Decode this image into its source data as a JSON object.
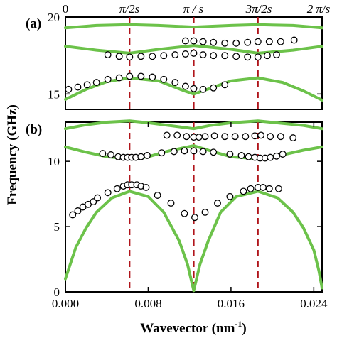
{
  "figure": {
    "ylabel": "Frequency (GHz)",
    "xlabel_main": "Wavevector (nm",
    "xlabel_sup": "-1",
    "xlabel_close": ")",
    "top_ticks": [
      "0",
      "π/2s",
      "π / s",
      "3π/2s",
      "2 π/s"
    ],
    "colors": {
      "band": "#6cc24a",
      "marker": "#b0151b",
      "circle": "#000000",
      "axis": "#000000"
    }
  },
  "chart_data": [
    {
      "type": "line+scatter",
      "panel_label": "(a)",
      "xlim": [
        0,
        0.0248
      ],
      "ylim": [
        14,
        20
      ],
      "yticks": [
        15,
        20
      ],
      "ytick_labels": [
        "15",
        "20"
      ],
      "markers_x": [
        0.0062,
        0.0124,
        0.0186
      ],
      "series": [
        {
          "kind": "line",
          "x": [
            0,
            0.003,
            0.0062,
            0.009,
            0.0124,
            0.016,
            0.0186,
            0.022,
            0.0248
          ],
          "y": [
            19.3,
            19.45,
            19.5,
            19.45,
            19.35,
            19.45,
            19.5,
            19.45,
            19.3
          ]
        },
        {
          "kind": "line",
          "x": [
            0,
            0.003,
            0.0062,
            0.009,
            0.0124,
            0.016,
            0.0186,
            0.022,
            0.0248
          ],
          "y": [
            18.1,
            17.85,
            17.65,
            17.9,
            18.15,
            17.9,
            17.65,
            17.85,
            18.1
          ]
        },
        {
          "kind": "line",
          "x": [
            0,
            0.002,
            0.004,
            0.0062,
            0.009,
            0.0115,
            0.0124,
            0.0135,
            0.016,
            0.0186,
            0.021,
            0.023,
            0.0248
          ],
          "y": [
            14.65,
            15.3,
            15.8,
            16.05,
            15.85,
            15.2,
            15.0,
            15.25,
            15.85,
            16.05,
            15.75,
            15.2,
            14.6
          ]
        },
        {
          "kind": "scatter",
          "x": [
            0.0003,
            0.0012,
            0.0021,
            0.003,
            0.0041,
            0.0052,
            0.0062,
            0.0073,
            0.0084,
            0.0095,
            0.0106,
            0.0116,
            0.0124,
            0.0133,
            0.0143,
            0.0154
          ],
          "y": [
            15.3,
            15.45,
            15.6,
            15.75,
            15.95,
            16.05,
            16.15,
            16.15,
            16.1,
            15.95,
            15.75,
            15.5,
            15.35,
            15.3,
            15.4,
            15.6
          ]
        },
        {
          "kind": "scatter",
          "x": [
            0.0041,
            0.0052,
            0.0062,
            0.0073,
            0.0084,
            0.0095,
            0.0106,
            0.0116,
            0.0124,
            0.0133,
            0.0143,
            0.0154,
            0.0165,
            0.0176,
            0.0186,
            0.0195,
            0.0204
          ],
          "y": [
            17.55,
            17.45,
            17.4,
            17.45,
            17.45,
            17.5,
            17.55,
            17.6,
            17.65,
            17.55,
            17.5,
            17.5,
            17.45,
            17.4,
            17.4,
            17.5,
            17.55
          ]
        },
        {
          "kind": "scatter",
          "x": [
            0.0116,
            0.0124,
            0.0133,
            0.0143,
            0.0154,
            0.0165,
            0.0176,
            0.0186,
            0.0197,
            0.0208,
            0.0221
          ],
          "y": [
            18.45,
            18.45,
            18.4,
            18.35,
            18.3,
            18.3,
            18.35,
            18.4,
            18.4,
            18.4,
            18.5
          ]
        }
      ]
    },
    {
      "type": "line+scatter",
      "panel_label": "(b)",
      "xlim": [
        0,
        0.0248
      ],
      "ylim": [
        0,
        13
      ],
      "yticks": [
        0,
        5,
        10
      ],
      "ytick_labels": [
        "0",
        "5",
        "10"
      ],
      "xticks": [
        0,
        0.008,
        0.016,
        0.024
      ],
      "xtick_labels": [
        "0.000",
        "0.008",
        "0.016",
        "0.024"
      ],
      "markers_x": [
        0.0062,
        0.0124,
        0.0186
      ],
      "series": [
        {
          "kind": "line",
          "x": [
            0,
            0.002,
            0.004,
            0.0062,
            0.008,
            0.01,
            0.0124,
            0.014,
            0.016,
            0.0186,
            0.021,
            0.023,
            0.0248
          ],
          "y": [
            12.5,
            12.8,
            13.0,
            13.1,
            12.95,
            12.75,
            12.5,
            12.75,
            12.95,
            13.1,
            12.9,
            12.75,
            12.5
          ]
        },
        {
          "kind": "line",
          "x": [
            0,
            0.002,
            0.004,
            0.0062,
            0.008,
            0.01,
            0.0124,
            0.014,
            0.016,
            0.0186,
            0.021,
            0.023,
            0.0248
          ],
          "y": [
            11.1,
            10.7,
            10.35,
            10.2,
            10.35,
            10.8,
            11.2,
            10.8,
            10.35,
            10.2,
            10.5,
            10.85,
            11.1
          ]
        },
        {
          "kind": "line",
          "x": [
            0,
            0.0005,
            0.001,
            0.002,
            0.003,
            0.0045,
            0.0062,
            0.008,
            0.0095,
            0.011,
            0.0118,
            0.0124
          ],
          "y": [
            1.0,
            2.2,
            3.4,
            4.9,
            6.1,
            7.2,
            7.7,
            7.3,
            6.1,
            3.9,
            2.1,
            0.1
          ]
        },
        {
          "kind": "line",
          "x": [
            0.0124,
            0.013,
            0.0138,
            0.015,
            0.0165,
            0.0186,
            0.0205,
            0.022,
            0.023,
            0.024,
            0.0245,
            0.0248
          ],
          "y": [
            0.1,
            2.1,
            3.9,
            6.1,
            7.3,
            7.7,
            7.2,
            6.1,
            4.9,
            3.2,
            1.6,
            0.3
          ]
        },
        {
          "kind": "scatter",
          "x": [
            0.0007,
            0.0012,
            0.0017,
            0.0022,
            0.0027,
            0.0031,
            0.0041,
            0.005,
            0.0056,
            0.006,
            0.0064,
            0.0069,
            0.0073,
            0.0078,
            0.0089,
            0.0102,
            0.0115,
            0.0125,
            0.0135,
            0.0147,
            0.0159,
            0.0172,
            0.0179,
            0.0186,
            0.0191,
            0.0197,
            0.0206
          ],
          "y": [
            5.9,
            6.2,
            6.5,
            6.7,
            6.9,
            7.2,
            7.6,
            7.9,
            8.1,
            8.2,
            8.2,
            8.2,
            8.1,
            8.0,
            7.4,
            6.8,
            6.0,
            5.7,
            6.1,
            6.8,
            7.3,
            7.7,
            7.9,
            8.0,
            8.0,
            7.9,
            7.9
          ]
        },
        {
          "kind": "scatter",
          "x": [
            0.0036,
            0.0044,
            0.0051,
            0.0056,
            0.006,
            0.0064,
            0.0068,
            0.0073,
            0.0079,
            0.0093,
            0.0105,
            0.0115,
            0.0124,
            0.0133,
            0.0143,
            0.0159,
            0.017,
            0.0177,
            0.0183,
            0.0188,
            0.0193,
            0.0198,
            0.0204,
            0.021
          ],
          "y": [
            10.6,
            10.5,
            10.35,
            10.3,
            10.3,
            10.3,
            10.3,
            10.35,
            10.45,
            10.65,
            10.75,
            10.8,
            10.8,
            10.75,
            10.7,
            10.55,
            10.45,
            10.35,
            10.3,
            10.25,
            10.25,
            10.3,
            10.4,
            10.55
          ]
        },
        {
          "kind": "scatter",
          "x": [
            0.0098,
            0.0108,
            0.0117,
            0.0124,
            0.0129,
            0.0135,
            0.0144,
            0.0154,
            0.0164,
            0.0174,
            0.0183,
            0.0189,
            0.0198,
            0.0208,
            0.022
          ],
          "y": [
            12.0,
            12.0,
            11.9,
            11.85,
            11.85,
            11.9,
            11.95,
            11.9,
            11.9,
            11.9,
            11.95,
            12.0,
            11.9,
            11.9,
            11.8
          ]
        }
      ]
    }
  ]
}
